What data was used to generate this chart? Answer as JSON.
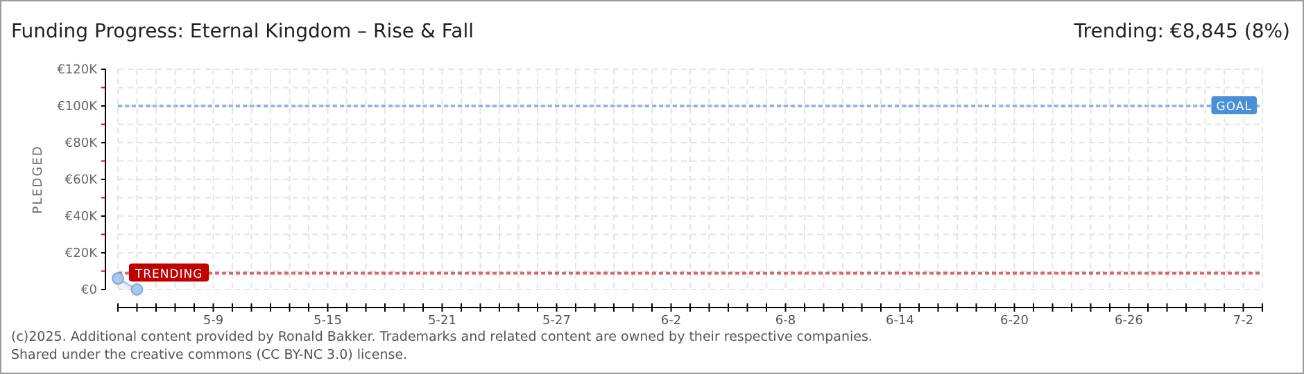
{
  "chart_data": {
    "type": "area",
    "title": "Funding Progress: Eternal Kingdom – Rise & Fall",
    "subtitle": "Trending:  €8,845 (8%)",
    "ylabel": "PLEDGED",
    "x": [
      "2025-05-04",
      "2025-05-05"
    ],
    "series": [
      {
        "color": "#a9c8ea",
        "values": [
          6000,
          0
        ]
      }
    ],
    "marker": "circle",
    "grid": true,
    "xlim": [
      "2025-05-04",
      "2025-07-03"
    ],
    "xticks": [
      {
        "value": "2025-05-04",
        "label": null
      },
      {
        "value": "2025-05-05",
        "label": null
      },
      {
        "value": "2025-05-06",
        "label": null
      },
      {
        "value": "2025-05-07",
        "label": null
      },
      {
        "value": "2025-05-08",
        "label": null
      },
      {
        "value": "2025-05-09",
        "label": "5-9"
      },
      {
        "value": "2025-05-10",
        "label": null
      },
      {
        "value": "2025-05-11",
        "label": null
      },
      {
        "value": "2025-05-12",
        "label": null
      },
      {
        "value": "2025-05-13",
        "label": null
      },
      {
        "value": "2025-05-14",
        "label": null
      },
      {
        "value": "2025-05-15",
        "label": "5-15"
      },
      {
        "value": "2025-05-16",
        "label": null
      },
      {
        "value": "2025-05-17",
        "label": null
      },
      {
        "value": "2025-05-18",
        "label": null
      },
      {
        "value": "2025-05-19",
        "label": null
      },
      {
        "value": "2025-05-20",
        "label": null
      },
      {
        "value": "2025-05-21",
        "label": "5-21"
      },
      {
        "value": "2025-05-22",
        "label": null
      },
      {
        "value": "2025-05-23",
        "label": null
      },
      {
        "value": "2025-05-24",
        "label": null
      },
      {
        "value": "2025-05-25",
        "label": null
      },
      {
        "value": "2025-05-26",
        "label": null
      },
      {
        "value": "2025-05-27",
        "label": "5-27"
      },
      {
        "value": "2025-05-28",
        "label": null
      },
      {
        "value": "2025-05-29",
        "label": null
      },
      {
        "value": "2025-05-30",
        "label": null
      },
      {
        "value": "2025-05-31",
        "label": null
      },
      {
        "value": "2025-06-01",
        "label": null
      },
      {
        "value": "2025-06-02",
        "label": "6-2"
      },
      {
        "value": "2025-06-03",
        "label": null
      },
      {
        "value": "2025-06-04",
        "label": null
      },
      {
        "value": "2025-06-05",
        "label": null
      },
      {
        "value": "2025-06-06",
        "label": null
      },
      {
        "value": "2025-06-07",
        "label": null
      },
      {
        "value": "2025-06-08",
        "label": "6-8"
      },
      {
        "value": "2025-06-09",
        "label": null
      },
      {
        "value": "2025-06-10",
        "label": null
      },
      {
        "value": "2025-06-11",
        "label": null
      },
      {
        "value": "2025-06-12",
        "label": null
      },
      {
        "value": "2025-06-13",
        "label": null
      },
      {
        "value": "2025-06-14",
        "label": "6-14"
      },
      {
        "value": "2025-06-15",
        "label": null
      },
      {
        "value": "2025-06-16",
        "label": null
      },
      {
        "value": "2025-06-17",
        "label": null
      },
      {
        "value": "2025-06-18",
        "label": null
      },
      {
        "value": "2025-06-19",
        "label": null
      },
      {
        "value": "2025-06-20",
        "label": "6-20"
      },
      {
        "value": "2025-06-21",
        "label": null
      },
      {
        "value": "2025-06-22",
        "label": null
      },
      {
        "value": "2025-06-23",
        "label": null
      },
      {
        "value": "2025-06-24",
        "label": null
      },
      {
        "value": "2025-06-25",
        "label": null
      },
      {
        "value": "2025-06-26",
        "label": "6-26"
      },
      {
        "value": "2025-06-27",
        "label": null
      },
      {
        "value": "2025-06-28",
        "label": null
      },
      {
        "value": "2025-06-29",
        "label": null
      },
      {
        "value": "2025-06-30",
        "label": null
      },
      {
        "value": "2025-07-01",
        "label": null
      },
      {
        "value": "2025-07-02",
        "label": "7-2"
      },
      {
        "value": "2025-07-03",
        "label": null
      }
    ],
    "ylim": [
      0,
      120000
    ],
    "yticks": [
      {
        "value": 0,
        "label": "€0"
      },
      {
        "value": 10000,
        "label": null
      },
      {
        "value": 20000,
        "label": "€20K"
      },
      {
        "value": 30000,
        "label": null
      },
      {
        "value": 40000,
        "label": "€40K"
      },
      {
        "value": 50000,
        "label": null
      },
      {
        "value": 60000,
        "label": "€60K"
      },
      {
        "value": 70000,
        "label": null
      },
      {
        "value": 80000,
        "label": "€80K"
      },
      {
        "value": 90000,
        "label": null
      },
      {
        "value": 100000,
        "label": "€100K"
      },
      {
        "value": 110000,
        "label": null
      },
      {
        "value": 120000,
        "label": "€120K"
      }
    ],
    "ref_lines": [
      {
        "axis": "y",
        "value": 100000,
        "label": "GOAL",
        "color": "#4a90d9",
        "line_style": "dotted"
      },
      {
        "axis": "y",
        "value": 8845,
        "label": "TRENDING",
        "color": "#c00000",
        "line_style": "dotted"
      }
    ],
    "annotations": [
      "(c)2025. Additional content provided by Ronald Bakker. Trademarks and related content are owned by their respective companies.",
      "Shared under the creative commons (CC BY-NC 3.0) license."
    ]
  }
}
